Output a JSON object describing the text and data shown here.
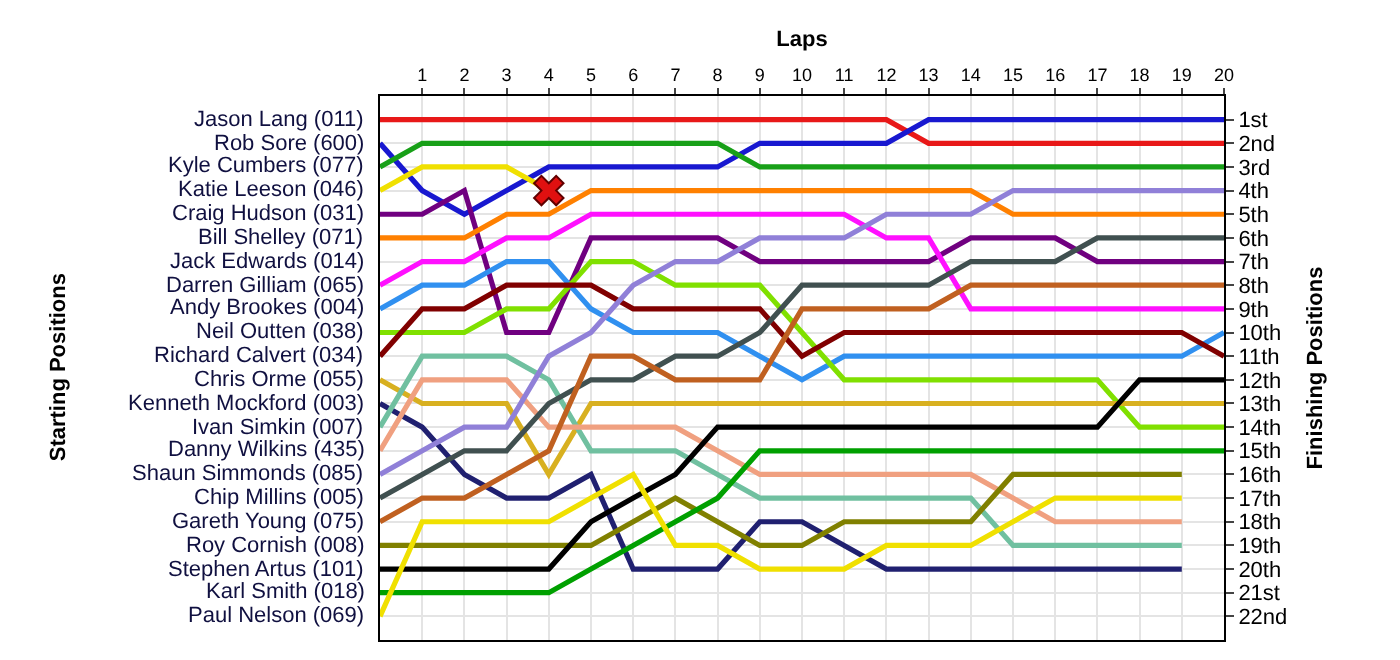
{
  "chart_data": {
    "type": "line",
    "xlabel": "Laps",
    "ylabel": "Finishing Positions",
    "annotations": [
      "Starting Positions",
      "Jack Edwards (014)"
    ],
    "x": [
      0,
      1,
      2,
      3,
      4,
      5,
      6,
      7,
      8,
      9,
      10,
      11,
      12,
      13,
      14,
      15,
      16,
      17,
      18,
      19,
      20
    ],
    "xlim": [
      0,
      20
    ],
    "xticks": [
      1,
      2,
      3,
      4,
      5,
      6,
      7,
      8,
      9,
      10,
      11,
      12,
      13,
      14,
      15,
      16,
      17,
      18,
      19,
      20
    ],
    "ylim": [
      23,
      0
    ],
    "yticks": [
      {
        "value": 1,
        "label": "1st"
      },
      {
        "value": 2,
        "label": "2nd"
      },
      {
        "value": 3,
        "label": "3rd"
      },
      {
        "value": 4,
        "label": "4th"
      },
      {
        "value": 5,
        "label": "5th"
      },
      {
        "value": 6,
        "label": "6th"
      },
      {
        "value": 7,
        "label": "7th"
      },
      {
        "value": 8,
        "label": "8th"
      },
      {
        "value": 9,
        "label": "9th"
      },
      {
        "value": 10,
        "label": "10th"
      },
      {
        "value": 11,
        "label": "11th"
      },
      {
        "value": 12,
        "label": "12th"
      },
      {
        "value": 13,
        "label": "13th"
      },
      {
        "value": 14,
        "label": "14th"
      },
      {
        "value": 15,
        "label": "15th"
      },
      {
        "value": 16,
        "label": "16th"
      },
      {
        "value": 17,
        "label": "17th"
      },
      {
        "value": 18,
        "label": "18th"
      },
      {
        "value": 19,
        "label": "19th"
      },
      {
        "value": 20,
        "label": "20th"
      },
      {
        "value": 21,
        "label": "21st"
      },
      {
        "value": 22,
        "label": "22nd"
      }
    ],
    "grid": true,
    "marker": "none",
    "line_style": "solid",
    "series": [
      {
        "name": "Jason Lang (011)",
        "color": "#e81818",
        "values": [
          1,
          1,
          1,
          1,
          1,
          1,
          1,
          1,
          1,
          1,
          1,
          1,
          1,
          2,
          2,
          2,
          2,
          2,
          2,
          2,
          2
        ]
      },
      {
        "name": "Rob Sore (600)",
        "color": "#1818d0",
        "values": [
          2,
          4,
          5,
          4,
          3,
          3,
          3,
          3,
          3,
          2,
          2,
          2,
          2,
          1,
          1,
          1,
          1,
          1,
          1,
          1,
          1
        ]
      },
      {
        "name": "Kyle Cumbers (077)",
        "color": "#18a018",
        "values": [
          3,
          2,
          2,
          2,
          2,
          2,
          2,
          2,
          2,
          3,
          3,
          3,
          3,
          3,
          3,
          3,
          3,
          3,
          3,
          3,
          3
        ]
      },
      {
        "name": "Katie Leeson (046)",
        "color": "#f0e000",
        "values": [
          4,
          3,
          3,
          3,
          4,
          null,
          null,
          null,
          null,
          null,
          null,
          null,
          null,
          null,
          null,
          null,
          null,
          null,
          null,
          null,
          null
        ]
      },
      {
        "name": "Craig Hudson (031)",
        "color": "#700080",
        "values": [
          5,
          5,
          4,
          10,
          10,
          6,
          6,
          6,
          6,
          7,
          7,
          7,
          7,
          7,
          6,
          6,
          6,
          7,
          7,
          7,
          7
        ]
      },
      {
        "name": "Bill Shelley (071)",
        "color": "#ff8000",
        "values": [
          6,
          6,
          6,
          5,
          5,
          4,
          4,
          4,
          4,
          4,
          4,
          4,
          4,
          4,
          4,
          5,
          5,
          5,
          5,
          5,
          5
        ]
      },
      {
        "name": "Darren Gilliam (065)",
        "color": "#ff10ff",
        "values": [
          8,
          7,
          7,
          6,
          6,
          5,
          5,
          5,
          5,
          5,
          5,
          5,
          6,
          6,
          9,
          9,
          9,
          9,
          9,
          9,
          9
        ]
      },
      {
        "name": "Andy Brookes (004)",
        "color": "#3090f0",
        "values": [
          9,
          8,
          8,
          7,
          7,
          9,
          10,
          10,
          10,
          11,
          12,
          11,
          11,
          11,
          11,
          11,
          11,
          11,
          11,
          11,
          10
        ]
      },
      {
        "name": "Neil Outten (038)",
        "color": "#80e000",
        "values": [
          10,
          10,
          10,
          9,
          9,
          7,
          7,
          8,
          8,
          8,
          10,
          12,
          12,
          12,
          12,
          12,
          12,
          12,
          14,
          14,
          14
        ]
      },
      {
        "name": "Richard Calvert (034)",
        "color": "#800000",
        "values": [
          11,
          9,
          9,
          8,
          8,
          8,
          9,
          9,
          9,
          9,
          11,
          10,
          10,
          10,
          10,
          10,
          10,
          10,
          10,
          10,
          11
        ]
      },
      {
        "name": "Chris Orme (055)",
        "color": "#d8b020",
        "values": [
          12,
          13,
          13,
          13,
          16,
          13,
          13,
          13,
          13,
          13,
          13,
          13,
          13,
          13,
          13,
          13,
          13,
          13,
          13,
          13,
          13
        ]
      },
      {
        "name": "Kenneth Mockford (003)",
        "color": "#202070",
        "values": [
          13,
          14,
          16,
          17,
          17,
          16,
          20,
          20,
          20,
          18,
          18,
          19,
          20,
          20,
          20,
          20,
          20,
          20,
          20,
          20,
          null
        ]
      },
      {
        "name": "Ivan Simkin (007)",
        "color": "#70c0a0",
        "values": [
          14,
          11,
          11,
          11,
          12,
          15,
          15,
          15,
          16,
          17,
          17,
          17,
          17,
          17,
          17,
          19,
          19,
          19,
          19,
          19,
          null
        ]
      },
      {
        "name": "Danny Wilkins (435)",
        "color": "#f0a080",
        "values": [
          15,
          12,
          12,
          12,
          14,
          14,
          14,
          14,
          15,
          16,
          16,
          16,
          16,
          16,
          16,
          17,
          18,
          18,
          18,
          18,
          null
        ]
      },
      {
        "name": "Shaun Simmonds (085)",
        "color": "#9080d8",
        "values": [
          16,
          15,
          14,
          14,
          11,
          10,
          8,
          7,
          7,
          6,
          6,
          6,
          5,
          5,
          5,
          4,
          4,
          4,
          4,
          4,
          4
        ]
      },
      {
        "name": "Chip Millins (005)",
        "color": "#405050",
        "values": [
          17,
          16,
          15,
          15,
          13,
          12,
          12,
          11,
          11,
          10,
          8,
          8,
          8,
          8,
          7,
          7,
          7,
          6,
          6,
          6,
          6
        ]
      },
      {
        "name": "Gareth Young (075)",
        "color": "#c06020",
        "values": [
          18,
          17,
          17,
          16,
          15,
          11,
          11,
          12,
          12,
          12,
          9,
          9,
          9,
          9,
          8,
          8,
          8,
          8,
          8,
          8,
          8
        ]
      },
      {
        "name": "Roy Cornish (008)",
        "color": "#808000",
        "values": [
          19,
          19,
          19,
          19,
          19,
          19,
          18,
          17,
          18,
          19,
          19,
          18,
          18,
          18,
          18,
          16,
          16,
          16,
          16,
          16,
          null
        ]
      },
      {
        "name": "Stephen Artus (101)",
        "color": "#000000",
        "values": [
          20,
          20,
          20,
          20,
          20,
          18,
          17,
          16,
          14,
          14,
          14,
          14,
          14,
          14,
          14,
          14,
          14,
          14,
          12,
          12,
          12
        ]
      },
      {
        "name": "Karl Smith (018)",
        "color": "#00a000",
        "values": [
          21,
          21,
          21,
          21,
          21,
          20,
          19,
          18,
          17,
          15,
          15,
          15,
          15,
          15,
          15,
          15,
          15,
          15,
          15,
          15,
          15
        ]
      },
      {
        "name": "Paul Nelson (069)",
        "color": "#f0e000",
        "values": [
          22,
          18,
          18,
          18,
          18,
          17,
          16,
          19,
          19,
          20,
          20,
          20,
          19,
          19,
          19,
          18,
          17,
          17,
          17,
          17,
          null
        ]
      },
      {
        "type": "scatter",
        "marker": "cross",
        "color": "#e01010",
        "x": [
          4
        ],
        "values": [
          4
        ]
      }
    ]
  }
}
